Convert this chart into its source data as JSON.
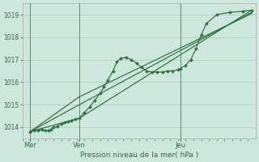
{
  "background_color": "#cce8dc",
  "grid_color": "#aaccbb",
  "line_color": "#2d6e3e",
  "marker_color": "#2d6e3e",
  "xlabel": "Pression niveau de la mer( hPa )",
  "tick_label_color": "#2d6e3e",
  "ylim": [
    1013.5,
    1019.5
  ],
  "yticks": [
    1014,
    1015,
    1016,
    1017,
    1018,
    1019
  ],
  "xlim": [
    0,
    9.0
  ],
  "day_labels": [
    "Mer",
    "Ven",
    "Jeu"
  ],
  "day_positions": [
    0.3,
    2.2,
    6.1
  ],
  "vline_positions": [
    0.3,
    2.2,
    6.1
  ],
  "series_main": {
    "x": [
      0.3,
      0.45,
      0.6,
      0.75,
      0.9,
      1.0,
      1.1,
      1.2,
      1.35,
      1.5,
      1.65,
      1.75,
      1.9,
      2.05,
      2.2,
      2.4,
      2.6,
      2.8,
      3.0,
      3.15,
      3.3,
      3.5,
      3.65,
      3.8,
      4.0,
      4.2,
      4.4,
      4.6,
      4.8,
      5.0,
      5.2,
      5.4,
      5.6,
      5.8,
      6.0,
      6.1,
      6.3,
      6.5,
      6.7,
      6.9,
      7.1,
      7.5,
      8.0,
      8.5,
      8.85
    ],
    "y": [
      1013.8,
      1013.85,
      1013.85,
      1013.9,
      1013.85,
      1013.85,
      1013.9,
      1014.0,
      1014.05,
      1014.15,
      1014.2,
      1014.25,
      1014.3,
      1014.35,
      1014.4,
      1014.65,
      1014.9,
      1015.2,
      1015.5,
      1015.8,
      1016.1,
      1016.5,
      1016.9,
      1017.05,
      1017.1,
      1017.0,
      1016.85,
      1016.65,
      1016.5,
      1016.45,
      1016.45,
      1016.45,
      1016.5,
      1016.5,
      1016.55,
      1016.6,
      1016.75,
      1017.0,
      1017.5,
      1018.1,
      1018.6,
      1019.0,
      1019.1,
      1019.15,
      1019.2
    ]
  },
  "series_lines": [
    {
      "x": [
        0.3,
        2.2,
        8.85
      ],
      "y": [
        1013.8,
        1014.4,
        1019.2
      ]
    },
    {
      "x": [
        0.3,
        2.2,
        8.85
      ],
      "y": [
        1013.8,
        1015.0,
        1019.1
      ]
    },
    {
      "x": [
        0.3,
        2.2,
        8.85
      ],
      "y": [
        1013.8,
        1015.35,
        1019.05
      ]
    }
  ]
}
